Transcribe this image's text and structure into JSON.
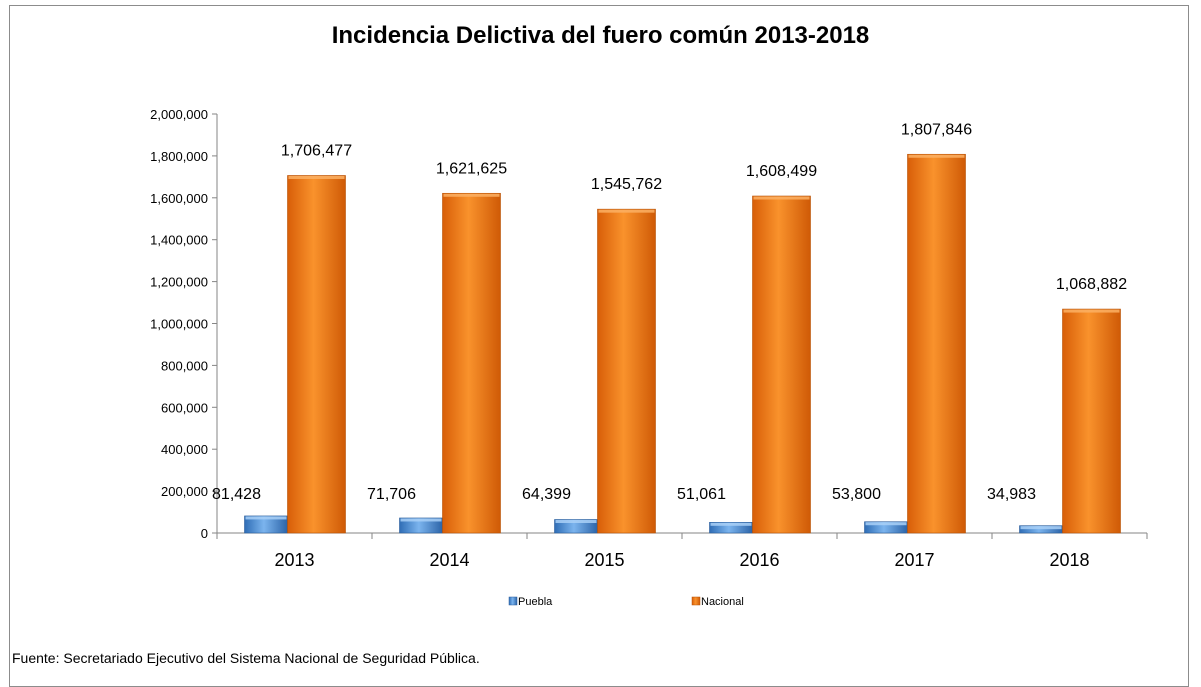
{
  "chart_data": {
    "type": "bar",
    "title": "Incidencia Delictiva del fuero común 2013-2018",
    "categories": [
      "2013",
      "2014",
      "2015",
      "2016",
      "2017",
      "2018"
    ],
    "series": [
      {
        "name": "Puebla",
        "values": [
          81428,
          71706,
          64399,
          51061,
          53800,
          34983
        ],
        "labels": [
          "81,428",
          "71,706",
          "64,399",
          "51,061",
          "53,800",
          "34,983"
        ]
      },
      {
        "name": "Nacional",
        "values": [
          1706477,
          1621625,
          1545762,
          1608499,
          1807846,
          1068882
        ],
        "labels": [
          "1,706,477",
          "1,621,625",
          "1,545,762",
          "1,608,499",
          "1,807,846",
          "1,068,882"
        ]
      }
    ],
    "ylim": [
      0,
      2000000
    ],
    "yticks": [
      0,
      200000,
      400000,
      600000,
      800000,
      1000000,
      1200000,
      1400000,
      1600000,
      1800000,
      2000000
    ],
    "ytick_labels": [
      "0",
      "200,000",
      "400,000",
      "600,000",
      "800,000",
      "1,000,000",
      "1,200,000",
      "1,400,000",
      "1,600,000",
      "1,800,000",
      "2,000,000"
    ],
    "xlabel": "",
    "ylabel": "",
    "grid": false,
    "legend_position": "bottom",
    "colors": {
      "Puebla": "#4f8fd6",
      "Nacional": "#ef7616"
    }
  },
  "source": "Fuente: Secretariado Ejecutivo del Sistema Nacional de Seguridad Pública."
}
